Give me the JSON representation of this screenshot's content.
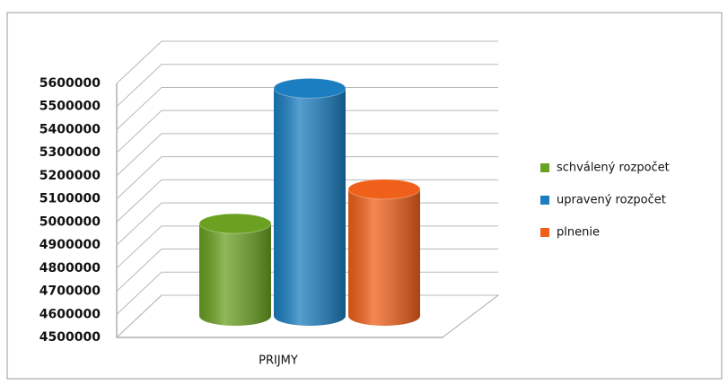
{
  "chart_data": {
    "type": "bar3d",
    "categories": [
      "PRIJMY"
    ],
    "series": [
      {
        "name": "schválený rozpočet",
        "color": "#6aa121",
        "values": [
          4930000
        ]
      },
      {
        "name": "upravený rozpočet",
        "color": "#1a7ec0",
        "values": [
          5560000
        ]
      },
      {
        "name": "plnenie",
        "color": "#f0601a",
        "values": [
          5090000
        ]
      }
    ],
    "ylim": [
      4500000,
      5600000
    ],
    "yticks": [
      4500000,
      4600000,
      4700000,
      4800000,
      4900000,
      5000000,
      5100000,
      5200000,
      5300000,
      5400000,
      5500000,
      5600000
    ],
    "grid": true,
    "legend": "right"
  }
}
